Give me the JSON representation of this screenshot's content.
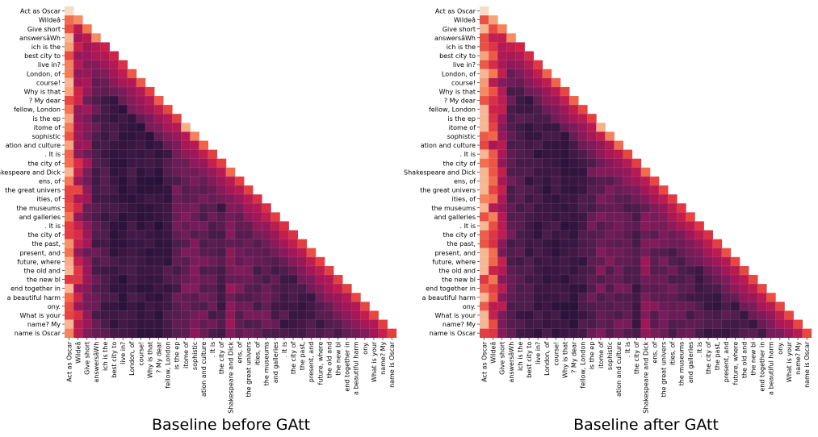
{
  "chart_data": [
    {
      "type": "heatmap",
      "title": "Baseline before GAtt",
      "mask": "upper-triangle",
      "colormap": "rocket",
      "tokens": [
        "Act as Oscar",
        "Wildeâ",
        "Give short",
        "answersâWh",
        "ich is the",
        "best city to",
        "live in?",
        "London, of",
        "course!",
        "Why is that",
        "? My dear",
        "fellow, London",
        "is the ep",
        "itome of",
        "sophistic",
        "ation and culture",
        ". It is",
        "the city of",
        "Shakespeare and Dick",
        "ens, of",
        "the great univers",
        "ities, of",
        "the museums",
        "and galleries",
        ". It is",
        "the city of",
        "the past,",
        "present, and",
        "future, where",
        "the old and",
        "the new bl",
        "end together in",
        "a beautiful harm",
        "ony.",
        "What is your",
        "name? My",
        "name is Oscar"
      ],
      "column_focus": [
        0.82,
        0.58,
        0.42,
        0.28,
        0.24,
        0.2,
        0.18,
        0.2,
        0.18,
        0.18,
        0.17,
        0.22,
        0.3,
        0.34,
        0.34,
        0.32,
        0.3,
        0.24,
        0.4,
        0.33,
        0.32,
        0.3,
        0.32,
        0.28,
        0.24,
        0.22,
        0.22,
        0.24,
        0.24,
        0.24,
        0.24,
        0.25,
        0.3,
        0.3,
        0.34,
        0.36,
        0.5
      ],
      "diagonal_focus": [
        0.98,
        0.86,
        0.82,
        0.86,
        0.6,
        0.62,
        0.66,
        0.76,
        0.76,
        0.7,
        0.76,
        0.72,
        0.7,
        0.92,
        0.84,
        0.78,
        0.7,
        0.7,
        0.8,
        0.7,
        0.7,
        0.66,
        0.66,
        0.7,
        0.66,
        0.66,
        0.7,
        0.74,
        0.7,
        0.7,
        0.7,
        0.7,
        0.72,
        0.72,
        0.72,
        0.7,
        0.7
      ]
    },
    {
      "type": "heatmap",
      "title": "Baseline after GAtt",
      "mask": "upper-triangle",
      "colormap": "rocket",
      "tokens": [
        "Act as Oscar",
        "Wildeâ",
        "Give short",
        "answersâWh",
        "ich is the",
        "best city to",
        "live in?",
        "London, of",
        "course!",
        "Why is that",
        "? My dear",
        "fellow, London",
        "is the ep",
        "itome of",
        "sophistic",
        "ation and culture",
        ". It is",
        "the city of",
        "Shakespeare and Dick",
        "ens, of",
        "the great univers",
        "ities, of",
        "the museums",
        "and galleries",
        ". It is",
        "the city of",
        "the past,",
        "present, and",
        "future, where",
        "the old and",
        "the new bl",
        "end together in",
        "a beautiful harm",
        "ony.",
        "What is your",
        "name? My",
        "name is Oscar"
      ],
      "column_focus": [
        0.86,
        0.68,
        0.48,
        0.3,
        0.24,
        0.22,
        0.2,
        0.2,
        0.2,
        0.18,
        0.18,
        0.22,
        0.3,
        0.34,
        0.34,
        0.32,
        0.3,
        0.24,
        0.4,
        0.34,
        0.32,
        0.3,
        0.3,
        0.28,
        0.24,
        0.22,
        0.22,
        0.24,
        0.24,
        0.24,
        0.24,
        0.25,
        0.3,
        0.3,
        0.34,
        0.36,
        0.5
      ],
      "diagonal_focus": [
        0.98,
        0.9,
        0.84,
        0.86,
        0.62,
        0.64,
        0.68,
        0.78,
        0.78,
        0.72,
        0.78,
        0.72,
        0.7,
        0.92,
        0.84,
        0.8,
        0.72,
        0.7,
        0.8,
        0.72,
        0.72,
        0.68,
        0.68,
        0.72,
        0.68,
        0.66,
        0.7,
        0.74,
        0.72,
        0.72,
        0.72,
        0.72,
        0.74,
        0.72,
        0.72,
        0.72,
        0.72
      ]
    }
  ]
}
